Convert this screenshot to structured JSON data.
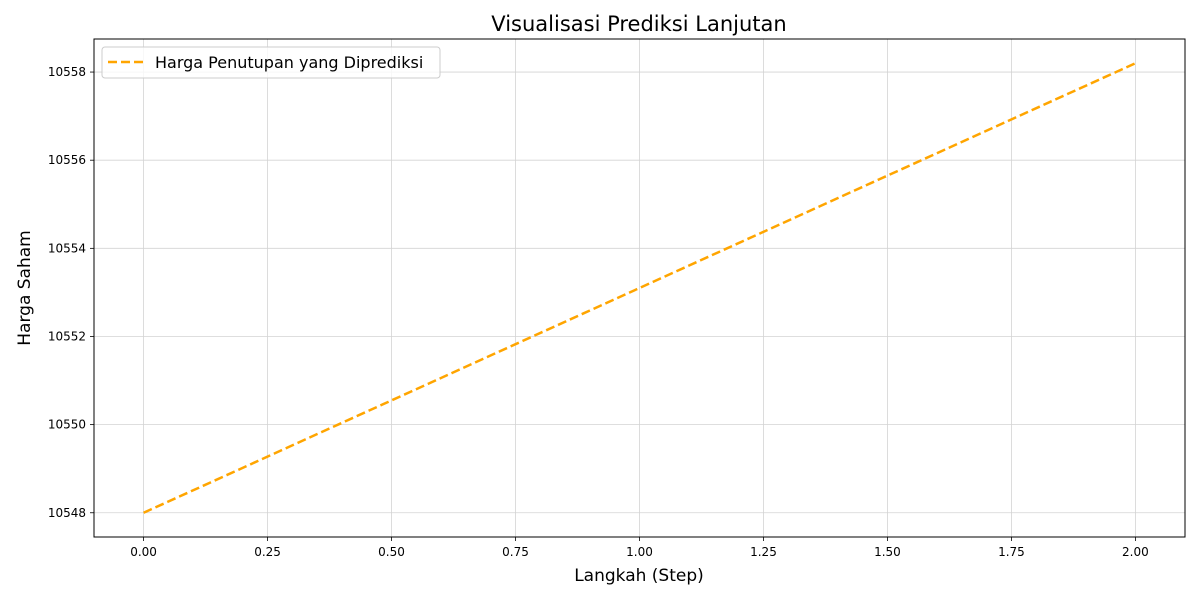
{
  "chart_data": {
    "type": "line",
    "title": "Visualisasi Prediksi Lanjutan",
    "xlabel": "Langkah (Step)",
    "ylabel": "Harga Saham",
    "x": [
      0,
      1,
      2
    ],
    "series": [
      {
        "name": "Harga Penutupan yang Diprediksi",
        "values": [
          10548.0,
          10553.1,
          10558.2
        ],
        "color": "#FFA500",
        "line_style": "dashed"
      }
    ],
    "xlim": [
      -0.1,
      2.1
    ],
    "ylim": [
      10547.45,
      10558.75
    ],
    "x_ticks": [
      "0.00",
      "0.25",
      "0.50",
      "0.75",
      "1.00",
      "1.25",
      "1.50",
      "1.75",
      "2.00"
    ],
    "y_ticks": [
      "10548",
      "10550",
      "10552",
      "10554",
      "10556",
      "10558"
    ],
    "grid": true,
    "legend_position": "top-left"
  }
}
